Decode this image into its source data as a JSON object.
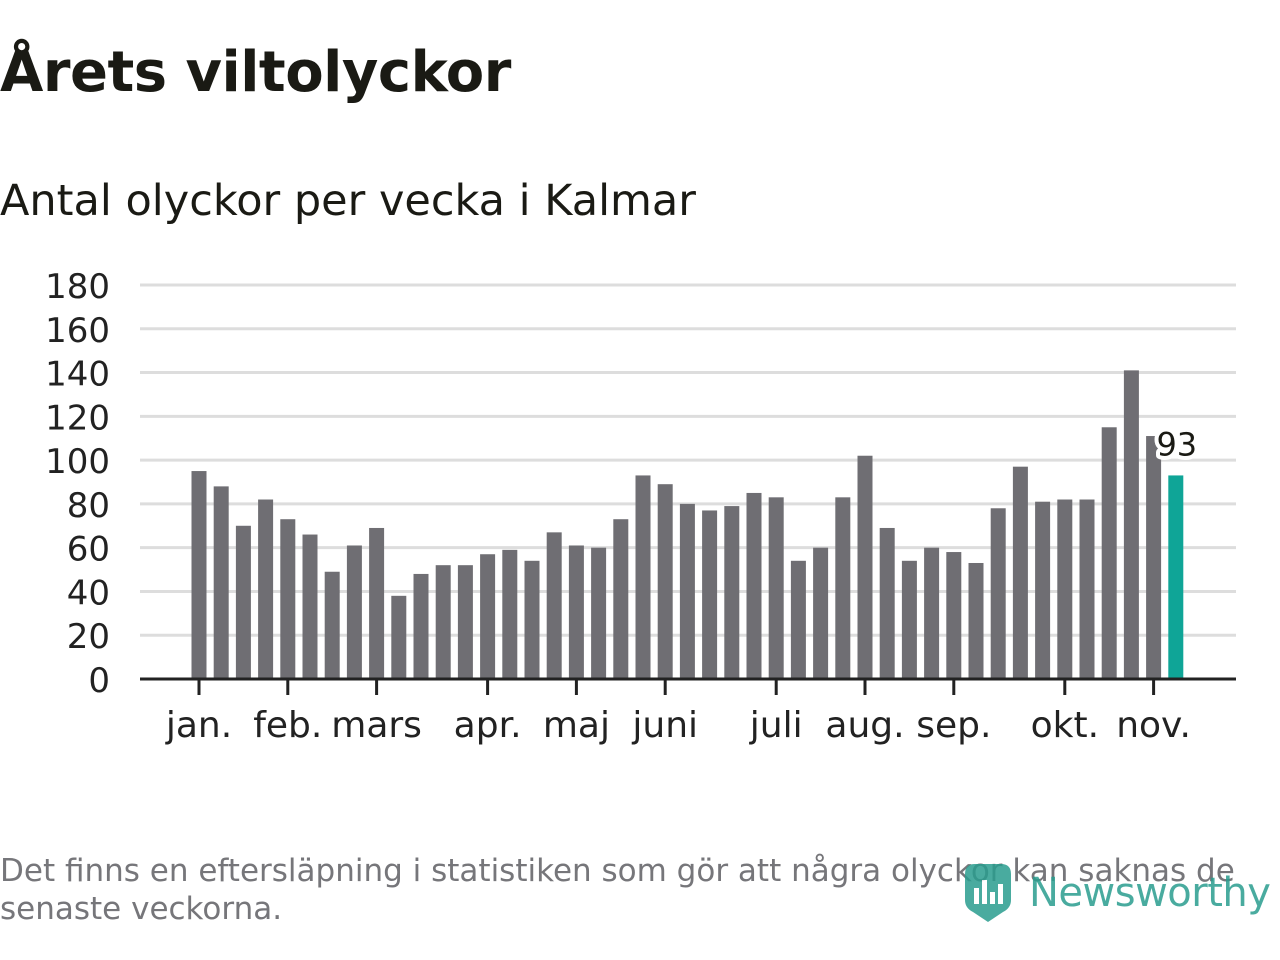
{
  "title": "Årets viltolyckor",
  "subtitle": "Antal olyckor per vecka i Kalmar",
  "footnote": "Det finns en eftersläpning i statistiken som gör att några olyckor kan saknas de senaste veckorna.",
  "logo": "Newsworthy",
  "colors": {
    "bar": "#6f6e73",
    "highlight": "#0fa597",
    "grid": "#dddddd",
    "axis": "#222222",
    "text": "#1a1a14"
  },
  "chart_data": {
    "type": "bar",
    "title": "Antal olyckor per vecka i Kalmar",
    "xlabel": "",
    "ylabel": "",
    "ylim": [
      0,
      180
    ],
    "yticks": [
      0,
      20,
      40,
      60,
      80,
      100,
      120,
      140,
      160,
      180
    ],
    "grid": true,
    "values": [
      95,
      88,
      70,
      82,
      73,
      66,
      49,
      61,
      69,
      38,
      48,
      52,
      52,
      57,
      59,
      54,
      67,
      61,
      60,
      73,
      93,
      89,
      80,
      77,
      79,
      85,
      83,
      54,
      60,
      83,
      102,
      69,
      54,
      60,
      58,
      53,
      78,
      97,
      81,
      82,
      82,
      115,
      141,
      111,
      93
    ],
    "highlight_index": 44,
    "highlight_label": "93",
    "month_labels": [
      {
        "label": "jan.",
        "week": 0
      },
      {
        "label": "feb.",
        "week": 4
      },
      {
        "label": "mars",
        "week": 8
      },
      {
        "label": "apr.",
        "week": 13
      },
      {
        "label": "maj",
        "week": 17
      },
      {
        "label": "juni",
        "week": 21
      },
      {
        "label": "juli",
        "week": 26
      },
      {
        "label": "aug.",
        "week": 30
      },
      {
        "label": "sep.",
        "week": 34
      },
      {
        "label": "okt.",
        "week": 39
      },
      {
        "label": "nov.",
        "week": 43
      }
    ]
  }
}
